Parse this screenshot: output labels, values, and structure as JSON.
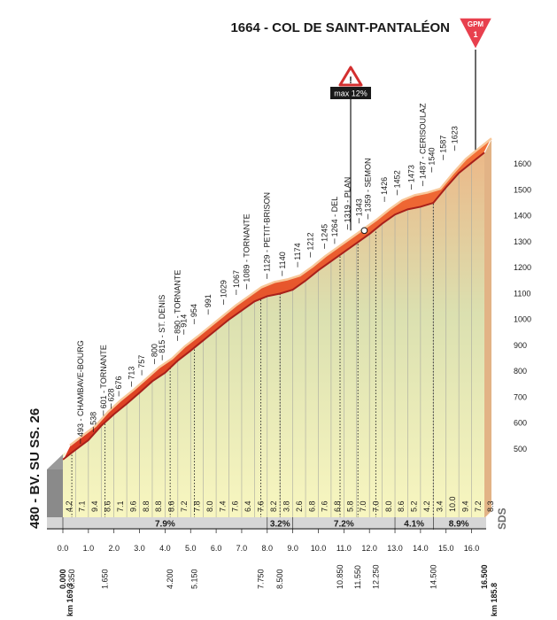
{
  "chart_data": {
    "type": "area",
    "title": "1664 - COL DE SAINT-PANTALÉON",
    "start_label": "480 - BV. SU SS. 26",
    "gpm_label": "GPM",
    "gpm_category": "1",
    "max_label": "max 12%",
    "y_ticks": [
      "500",
      "600",
      "700",
      "800",
      "900",
      "1000",
      "1100",
      "1200",
      "1300",
      "1400",
      "1500",
      "1600"
    ],
    "ylim": [
      480,
      1700
    ],
    "x_axis_km": [
      0,
      16.5
    ],
    "x_ticks": [
      "0.0",
      "1.0",
      "2.0",
      "3.0",
      "4.0",
      "5.0",
      "6.0",
      "7.0",
      "8.0",
      "9.0",
      "10.0",
      "11.0",
      "12.0",
      "13.0",
      "14.0",
      "15.0",
      "16.0"
    ],
    "km_start": "km 169.3",
    "km_end": "km 185.8",
    "profile": [
      {
        "km": 0.0,
        "alt": 480
      },
      {
        "km": 0.5,
        "alt": 518
      },
      {
        "km": 1.0,
        "alt": 555
      },
      {
        "km": 1.5,
        "alt": 610
      },
      {
        "km": 2.0,
        "alt": 655
      },
      {
        "km": 2.5,
        "alt": 695
      },
      {
        "km": 3.0,
        "alt": 738
      },
      {
        "km": 3.5,
        "alt": 782
      },
      {
        "km": 4.0,
        "alt": 815
      },
      {
        "km": 4.5,
        "alt": 862
      },
      {
        "km": 5.0,
        "alt": 900
      },
      {
        "km": 5.5,
        "alt": 940
      },
      {
        "km": 6.0,
        "alt": 980
      },
      {
        "km": 6.5,
        "alt": 1020
      },
      {
        "km": 7.0,
        "alt": 1055
      },
      {
        "km": 7.5,
        "alt": 1090
      },
      {
        "km": 8.0,
        "alt": 1110
      },
      {
        "km": 8.5,
        "alt": 1120
      },
      {
        "km": 9.0,
        "alt": 1135
      },
      {
        "km": 9.5,
        "alt": 1170
      },
      {
        "km": 10.0,
        "alt": 1210
      },
      {
        "km": 10.5,
        "alt": 1245
      },
      {
        "km": 11.0,
        "alt": 1280
      },
      {
        "km": 11.5,
        "alt": 1315
      },
      {
        "km": 12.0,
        "alt": 1350
      },
      {
        "km": 12.5,
        "alt": 1390
      },
      {
        "km": 13.0,
        "alt": 1425
      },
      {
        "km": 13.5,
        "alt": 1445
      },
      {
        "km": 14.0,
        "alt": 1455
      },
      {
        "km": 14.5,
        "alt": 1470
      },
      {
        "km": 15.0,
        "alt": 1530
      },
      {
        "km": 15.5,
        "alt": 1585
      },
      {
        "km": 16.0,
        "alt": 1625
      },
      {
        "km": 16.5,
        "alt": 1664
      }
    ],
    "spot_heights": [
      {
        "km": 0.55,
        "text": "493 - CHAMBAVE-BOURG",
        "alt": 493
      },
      {
        "km": 1.05,
        "text": "538",
        "alt": 538
      },
      {
        "km": 1.45,
        "text": "601 - TORNANTE",
        "alt": 601
      },
      {
        "km": 1.75,
        "text": "628",
        "alt": 628
      },
      {
        "km": 2.05,
        "text": "676",
        "alt": 676
      },
      {
        "km": 2.55,
        "text": "713",
        "alt": 713
      },
      {
        "km": 2.95,
        "text": "757",
        "alt": 757
      },
      {
        "km": 3.45,
        "text": "800",
        "alt": 800
      },
      {
        "km": 3.75,
        "text": "815 - ST. DENIS",
        "alt": 815
      },
      {
        "km": 4.35,
        "text": "890 - TORNANTE",
        "alt": 890
      },
      {
        "km": 4.6,
        "text": "914",
        "alt": 914
      },
      {
        "km": 5.0,
        "text": "954",
        "alt": 954
      },
      {
        "km": 5.55,
        "text": "991",
        "alt": 991
      },
      {
        "km": 6.15,
        "text": "1029",
        "alt": 1029
      },
      {
        "km": 6.65,
        "text": "1067",
        "alt": 1067
      },
      {
        "km": 7.05,
        "text": "1089 - TORNANTE",
        "alt": 1089
      },
      {
        "km": 7.85,
        "text": "1129 - PETIT-BRISON",
        "alt": 1129
      },
      {
        "km": 8.45,
        "text": "1140",
        "alt": 1140
      },
      {
        "km": 9.05,
        "text": "1174",
        "alt": 1174
      },
      {
        "km": 9.55,
        "text": "1212",
        "alt": 1212
      },
      {
        "km": 10.1,
        "text": "1245",
        "alt": 1245
      },
      {
        "km": 10.5,
        "text": "1264 - DEL",
        "alt": 1264
      },
      {
        "km": 11.0,
        "text": "1319 - PLAN",
        "alt": 1319
      },
      {
        "km": 11.45,
        "text": "1343",
        "alt": 1343
      },
      {
        "km": 11.8,
        "text": "1359 - SEMON",
        "alt": 1359
      },
      {
        "km": 12.45,
        "text": "1426",
        "alt": 1426
      },
      {
        "km": 12.95,
        "text": "1452",
        "alt": 1452
      },
      {
        "km": 13.5,
        "text": "1473",
        "alt": 1473
      },
      {
        "km": 13.95,
        "text": "1487 - CERISOULAZ",
        "alt": 1487
      },
      {
        "km": 14.3,
        "text": "1540",
        "alt": 1540
      },
      {
        "km": 14.75,
        "text": "1587",
        "alt": 1587
      },
      {
        "km": 15.2,
        "text": "1623",
        "alt": 1623
      }
    ],
    "segment_gradients": [
      "4.2",
      "7.1",
      "9.4",
      "8.6",
      "7.1",
      "9.6",
      "8.8",
      "8.8",
      "8.6",
      "7.2",
      "7.8",
      "8.0",
      "7.4",
      "7.6",
      "6.4",
      "7.6",
      "8.2",
      "3.8",
      "2.6",
      "6.8",
      "7.6",
      "6.8",
      "5.8",
      "7.0",
      "7.0",
      "8.0",
      "8.6",
      "5.2",
      "4.2",
      "3.4",
      "10.0",
      "9.4",
      "7.2",
      "8.3"
    ],
    "sector_averages": [
      {
        "from": 0.0,
        "to": 8.0,
        "text": "7.9%"
      },
      {
        "from": 8.0,
        "to": 9.0,
        "text": "3.2%"
      },
      {
        "from": 9.0,
        "to": 13.0,
        "text": "7.2%"
      },
      {
        "from": 13.0,
        "to": 14.5,
        "text": "4.1%"
      },
      {
        "from": 14.5,
        "to": 16.5,
        "text": "8.9%"
      }
    ],
    "point_distances": [
      "0.000",
      "0.350",
      "1.650",
      "4.200",
      "5.150",
      "7.750",
      "8.500",
      "10.850",
      "11.550",
      "12.250",
      "14.500",
      "16.500"
    ],
    "point_distance_km": [
      0.0,
      0.35,
      1.65,
      4.2,
      5.15,
      7.75,
      8.5,
      10.85,
      11.55,
      12.25,
      14.5,
      16.5
    ],
    "max_km": 11.8
  },
  "brand": "SDS",
  "colors": {
    "orange": "#f0572a",
    "orange_light": "#f6a46b",
    "dark_red": "#b8291a",
    "sky_top": "#e9a874",
    "ground_bottom": "#f8f6b8",
    "gpm_red": "#e8404e"
  }
}
